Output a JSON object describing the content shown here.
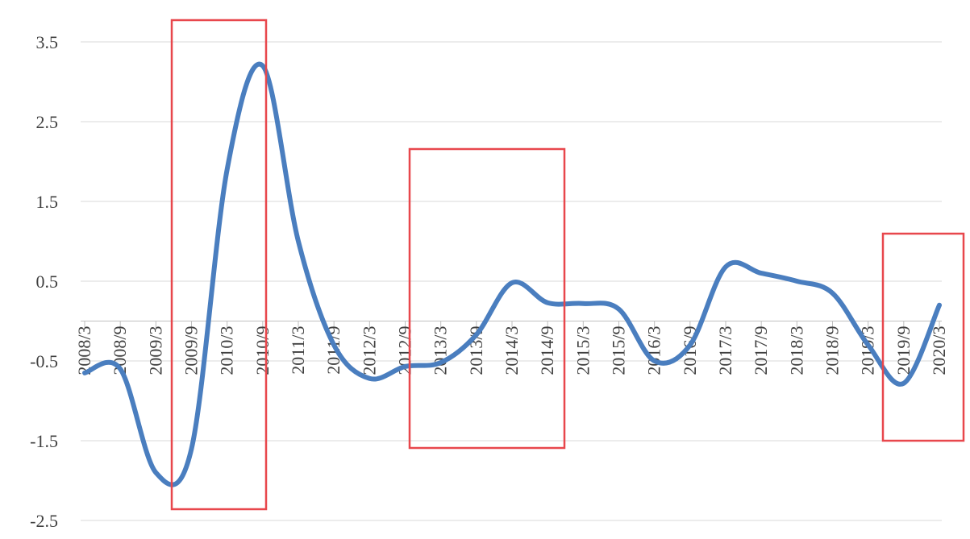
{
  "chart_data": {
    "type": "line",
    "categories": [
      "2008/3",
      "2008/9",
      "2009/3",
      "2009/9",
      "2010/3",
      "2010/9",
      "2011/3",
      "2011/9",
      "2012/3",
      "2012/9",
      "2013/3",
      "2013/9",
      "2014/3",
      "2014/9",
      "2015/3",
      "2015/9",
      "2016/3",
      "2016/9",
      "2017/3",
      "2017/9",
      "2018/3",
      "2018/9",
      "2019/3",
      "2019/9",
      "2020/3"
    ],
    "series": [
      {
        "color": "#4a7ebf",
        "values": [
          -0.65,
          -0.6,
          -1.9,
          -1.6,
          1.9,
          3.2,
          1.0,
          -0.3,
          -0.72,
          -0.57,
          -0.52,
          -0.17,
          0.48,
          0.23,
          0.22,
          0.15,
          -0.5,
          -0.3,
          0.68,
          0.6,
          0.5,
          0.35,
          -0.3,
          -0.78,
          0.2
        ]
      }
    ],
    "ylim": [
      -2.5,
      3.5
    ],
    "yticks": [
      -2.5,
      -1.5,
      -0.5,
      0.5,
      1.5,
      2.5,
      3.5
    ],
    "grid": true
  }
}
